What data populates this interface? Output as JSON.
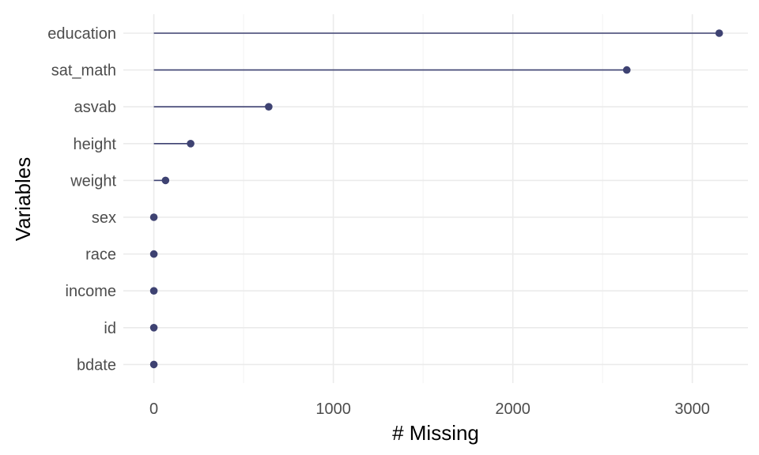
{
  "chart_data": {
    "type": "lollipop",
    "title": "",
    "xlabel": "# Missing",
    "ylabel": "Variables",
    "xlim": [
      -170,
      3310
    ],
    "x_ticks": [
      0,
      1000,
      2000,
      3000
    ],
    "x_tick_labels": [
      "0",
      "1000",
      "2000",
      "3000"
    ],
    "categories": [
      "education",
      "sat_math",
      "asvab",
      "height",
      "weight",
      "sex",
      "race",
      "income",
      "id",
      "bdate"
    ],
    "values": [
      3150,
      2635,
      640,
      205,
      65,
      0,
      0,
      0,
      0,
      0
    ],
    "grid": true,
    "legend": "none",
    "colors": {
      "series": "#3e4272",
      "grid_major": "#ebebeb",
      "grid_minor": "#f2f2f2",
      "tick_text": "#4d4d4d",
      "title_text": "#000000"
    }
  }
}
